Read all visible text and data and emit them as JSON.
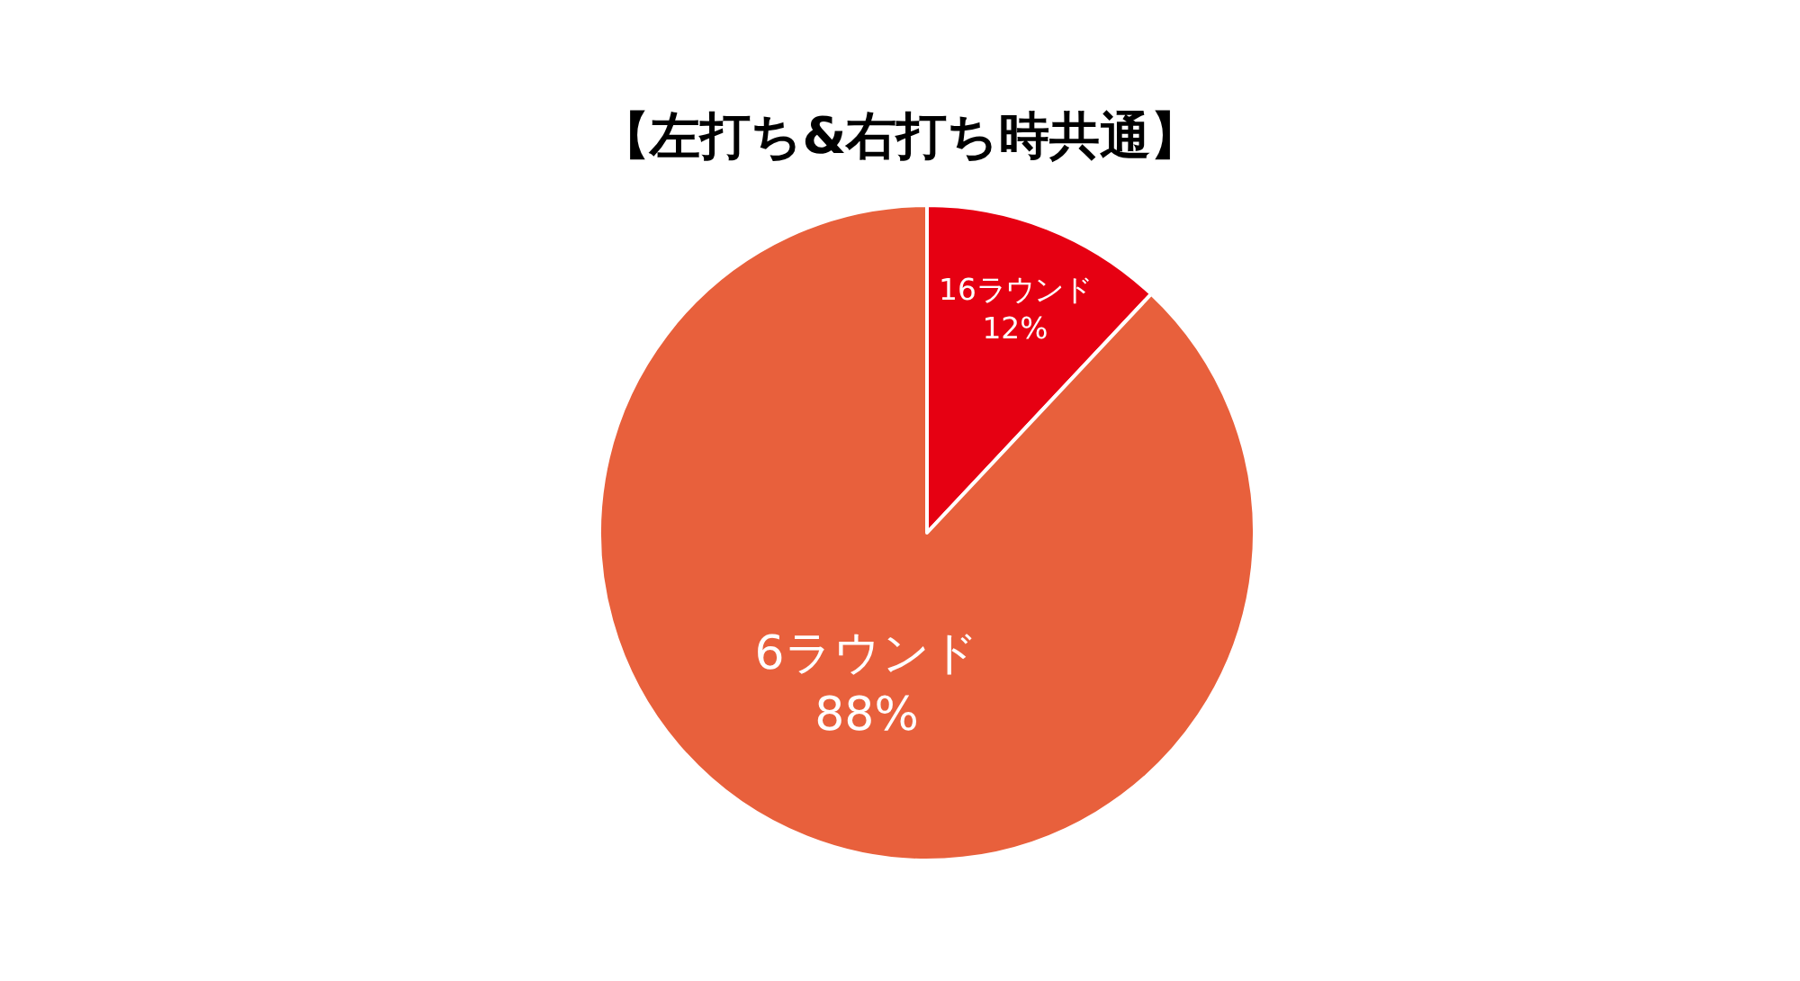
{
  "chart_data": {
    "type": "pie",
    "title": "【左打ち&右打ち時共通】",
    "categories": [
      "16ラウンド",
      "6ラウンド"
    ],
    "values": [
      12,
      88
    ],
    "value_labels": [
      "12%",
      "88%"
    ],
    "colors": [
      "#e60012",
      "#e8603c"
    ],
    "legend": false
  }
}
